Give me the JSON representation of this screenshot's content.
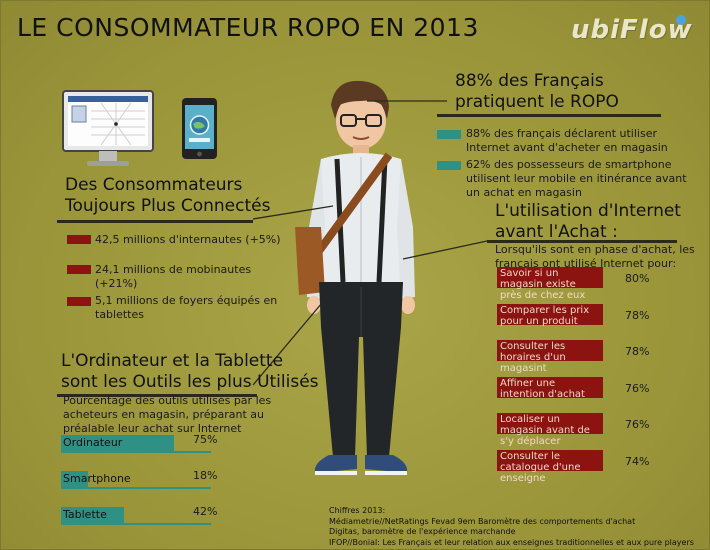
{
  "title": "LE CONSOMMATEUR ROPO EN 2013",
  "brand": "ubiFlow",
  "ropo": {
    "heading_line1": "88% des Français",
    "heading_line2": "pratiquent le ROPO",
    "items": [
      "88% des français déclarent utiliser Internet avant d'acheter en magasin",
      "62% des possesseurs de smartphone utilisent leur mobile en itinérance avant un achat en magasin"
    ],
    "accent": "#2e9184"
  },
  "connected": {
    "heading_line1": "Des Consommateurs",
    "heading_line2": "Toujours Plus Connectés",
    "items": [
      "42,5 millions d'internautes (+5%)",
      "24,1 millions de mobinautes (+21%)",
      "5,1 millions de foyers équipés en tablettes"
    ],
    "accent": "#8b1411"
  },
  "tools": {
    "heading_line1": "L'Ordinateur et la Tablette",
    "heading_line2": "sont les Outils les plus Utilisés",
    "description": "Pourcentage des outils utilisés par les acheteurs en magasin, préparant au préalable leur achat sur Internet",
    "bars": [
      {
        "label": "Ordinateur",
        "percent_label": "75%",
        "value": 75
      },
      {
        "label": "Smartphone",
        "percent_label": "18%",
        "value": 18
      },
      {
        "label": "Tablette",
        "percent_label": "42%",
        "value": 42
      }
    ]
  },
  "usage": {
    "heading_line1": "L'utilisation d'Internet",
    "heading_line2": "avant l'Achat :",
    "description": "Lorsqu'ils sont en phase d'achat, les français ont utilisé Internet pour:",
    "items": [
      {
        "label": "Savoir si un magasin existe près de chez eux",
        "percent_label": "80%"
      },
      {
        "label": "Comparer les prix pour un produit",
        "percent_label": "78%"
      },
      {
        "label": "Consulter les horaires d'un magasint",
        "percent_label": "78%"
      },
      {
        "label": "Affiner une intention d'achat",
        "percent_label": "76%"
      },
      {
        "label": "Localiser un magasin avant de s'y déplacer",
        "percent_label": "76%"
      },
      {
        "label": "Consulter le catalogue d'une enseigne",
        "percent_label": "74%"
      }
    ]
  },
  "sources": {
    "heading": "Chiffres 2013:",
    "lines": [
      "Médiametrie//NetRatings Fevad 9em Baromètre des comportements d'achat",
      "Digitas, baromètre de l'expérience marchande",
      "IFOP//Bonial: Les Français et leur relation aux enseignes traditionnelles et aux pure players"
    ]
  },
  "colors": {
    "background": "#a09a3e",
    "red": "#8b1411",
    "teal": "#2e9184"
  },
  "icons": [
    "desktop-computer-icon",
    "smartphone-icon",
    "person-illustration"
  ]
}
